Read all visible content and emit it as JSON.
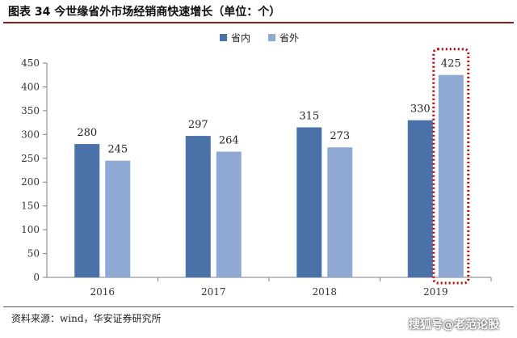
{
  "header": {
    "title": "图表 34 今世缘省外市场经销商快速增长（单位：个）"
  },
  "footer": {
    "source": "资料来源：wind，华安证券研究所",
    "watermark": "搜狐号@老范论股"
  },
  "colors": {
    "series_domestic": "#4a72a9",
    "series_outside": "#8fa9d4",
    "highlight_box": "#c00000",
    "axis": "#7f7f7f"
  },
  "chart_data": {
    "type": "bar",
    "title": "图表 34 今世缘省外市场经销商快速增长（单位：个）",
    "xlabel": "",
    "ylabel": "",
    "categories": [
      "2016",
      "2017",
      "2018",
      "2019"
    ],
    "series": [
      {
        "name": "省内",
        "values": [
          280,
          297,
          315,
          330
        ]
      },
      {
        "name": "省外",
        "values": [
          245,
          264,
          273,
          425
        ]
      }
    ],
    "ylim": [
      0,
      450
    ],
    "yticks": [
      0,
      50,
      100,
      150,
      200,
      250,
      300,
      350,
      400,
      450
    ],
    "grid": false,
    "legend": "top-center",
    "highlight": {
      "category": "2019",
      "series": "省外"
    }
  }
}
